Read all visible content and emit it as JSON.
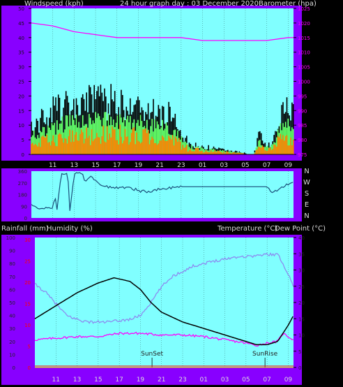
{
  "header": {
    "left_label": "Windspeed (kph)",
    "center_label": "24 hour graph day : 03 December 2020",
    "right_label": "Barometer (hpa)"
  },
  "mid_header": {
    "rainfall_label": "Rainfall (mm)",
    "humidity_label": "Humidity (%)",
    "temp_label": "Temperature (°C)",
    "dew_label": "Dew Point (°C)"
  },
  "colors": {
    "frame": "#8800ff",
    "plot_bg": "#80ffff",
    "wind_max": "#000000",
    "wind_gust": "#20c020",
    "wind_avg_fill": "#60ff60",
    "wind_avg": "#ff8800",
    "barometer": "#ff00ff",
    "direction": "#1a4f7a",
    "temperature": "#000000",
    "humidity": "#8c8cf0",
    "dew_point": "#ff00ff",
    "rainfall": "#ff0000"
  },
  "chart_data": [
    {
      "type": "area",
      "name": "wind-and-barometer",
      "x_ticks": [
        "11",
        "13",
        "15",
        "17",
        "19",
        "21",
        "23",
        "01",
        "03",
        "05",
        "07",
        "09"
      ],
      "x_unit": "hour of day",
      "x_range": [
        9,
        33.5
      ],
      "ylim_left": [
        0,
        50
      ],
      "yticks_left": [
        0,
        5,
        10,
        15,
        20,
        25,
        30,
        35,
        40,
        45,
        50
      ],
      "ylim_right": [
        975,
        1025
      ],
      "yticks_right": [
        975,
        980,
        985,
        990,
        995,
        1000,
        1005,
        1010,
        1015,
        1020,
        1025
      ],
      "series": [
        {
          "kind": "wind_max",
          "x": [
            9,
            10,
            11,
            12,
            13,
            14,
            15,
            16,
            17,
            18,
            19,
            20,
            21,
            22,
            23,
            23.8,
            29.8,
            30.3,
            30.8,
            31.5,
            32,
            33,
            33.5
          ],
          "values": [
            10,
            14,
            18,
            19,
            20,
            20,
            22,
            21,
            21,
            21,
            19,
            17,
            16,
            16,
            10,
            4,
            0,
            9,
            4,
            4,
            14,
            18,
            16
          ]
        },
        {
          "kind": "wind_gust",
          "x": [
            9,
            10,
            11,
            12,
            13,
            14,
            15,
            16,
            17,
            18,
            19,
            20,
            21,
            22,
            23,
            23.8,
            29.8,
            30.3,
            30.8,
            31.5,
            32,
            33,
            33.5
          ],
          "values": [
            7,
            9,
            11,
            12,
            13,
            13,
            14,
            14,
            14,
            14,
            13,
            12,
            11,
            10,
            7,
            3,
            0,
            6,
            3,
            3,
            9,
            12,
            11
          ]
        },
        {
          "kind": "wind_avg",
          "x": [
            9,
            10,
            11,
            12,
            13,
            14,
            15,
            16,
            17,
            18,
            19,
            20,
            21,
            22,
            23,
            23.8,
            29.8,
            30.3,
            30.8,
            31.5,
            32,
            33,
            33.5
          ],
          "values": [
            4,
            5,
            6,
            6,
            7,
            7,
            8,
            8,
            8,
            8,
            7,
            7,
            6,
            6,
            4,
            2,
            0,
            3,
            2,
            2,
            5,
            7,
            6
          ]
        },
        {
          "kind": "barometer",
          "x": [
            9,
            11,
            13,
            15,
            17,
            19,
            21,
            23,
            25,
            27,
            29,
            31,
            33,
            33.5
          ],
          "values": [
            1020,
            1019,
            1017,
            1016,
            1015,
            1015,
            1015,
            1015,
            1014,
            1014,
            1014,
            1014,
            1015,
            1015
          ]
        }
      ]
    },
    {
      "type": "line",
      "name": "wind-direction",
      "y_ticks": [
        "360",
        "270",
        "180",
        "90",
        "0"
      ],
      "compass_labels": [
        "N",
        "W",
        "S",
        "E",
        "N"
      ],
      "ylim": [
        0,
        360
      ],
      "x_range": [
        9,
        33.5
      ],
      "series": [
        {
          "kind": "direction",
          "x": [
            9,
            9.5,
            10,
            10.5,
            11,
            11.2,
            11.4,
            11.8,
            12,
            12.4,
            12.6,
            13,
            13.4,
            13.8,
            14,
            14.2,
            14.5,
            15,
            15.5,
            16,
            17,
            18,
            19,
            20,
            21,
            22,
            23,
            25,
            27,
            29,
            31,
            31.5,
            32,
            32.5,
            33,
            33.5
          ],
          "values": [
            100,
            80,
            70,
            80,
            70,
            180,
            60,
            350,
            330,
            355,
            60,
            340,
            350,
            330,
            280,
            300,
            320,
            290,
            250,
            240,
            230,
            240,
            210,
            200,
            220,
            230,
            240,
            240,
            240,
            240,
            240,
            200,
            210,
            240,
            260,
            280
          ]
        }
      ]
    },
    {
      "type": "line",
      "name": "temperature-humidity",
      "x_ticks": [
        "11",
        "13",
        "15",
        "17",
        "19",
        "21",
        "23",
        "01",
        "03",
        "05",
        "07",
        "09"
      ],
      "x_range": [
        9,
        33.5
      ],
      "ylim_left": [
        0,
        100
      ],
      "yticks_left": [
        0,
        10,
        20,
        30,
        40,
        50,
        60,
        70,
        80,
        90,
        100
      ],
      "rain_ticks": [
        0,
        5,
        10,
        15,
        20,
        25,
        30
      ],
      "ylim_right": [
        0,
        40
      ],
      "yticks_right": [
        0,
        5,
        10,
        15,
        20,
        25,
        30,
        35,
        40
      ],
      "annotations": [
        {
          "label": "SunSet",
          "x": 20.1
        },
        {
          "label": "SunRise",
          "x": 30.8
        }
      ],
      "series": [
        {
          "kind": "temperature",
          "x": [
            9,
            11,
            13,
            15,
            16.5,
            18,
            19,
            20,
            21,
            23,
            25,
            27,
            29,
            30,
            31,
            32,
            33,
            33.5
          ],
          "values": [
            15,
            19,
            23,
            26,
            27.6,
            26.5,
            24,
            20,
            17,
            14,
            12,
            10,
            8,
            7,
            7,
            8,
            13,
            16
          ]
        },
        {
          "kind": "humidity",
          "x": [
            9,
            10,
            11,
            12,
            13,
            14,
            15,
            16,
            17,
            18,
            19,
            20,
            21,
            22,
            24,
            26,
            28,
            30,
            31,
            32,
            32.5,
            33,
            33.5
          ],
          "values": [
            64,
            58,
            49,
            40,
            37,
            35,
            35,
            35,
            36,
            37,
            40,
            50,
            62,
            70,
            78,
            82,
            85,
            86,
            87,
            87,
            80,
            72,
            62
          ]
        },
        {
          "kind": "dew_point",
          "x": [
            9,
            11,
            13,
            15,
            17,
            19,
            21,
            23,
            25,
            27,
            29,
            30,
            31,
            32,
            32.5,
            33,
            33.5
          ],
          "values": [
            8.5,
            9,
            9.5,
            9.5,
            10.5,
            10.5,
            10,
            10,
            9.5,
            8.5,
            7.5,
            6.8,
            7.5,
            8,
            10.5,
            9.5,
            8.5
          ]
        },
        {
          "kind": "rainfall",
          "x": [
            9,
            33.5
          ],
          "values": [
            0,
            0
          ]
        }
      ]
    }
  ]
}
